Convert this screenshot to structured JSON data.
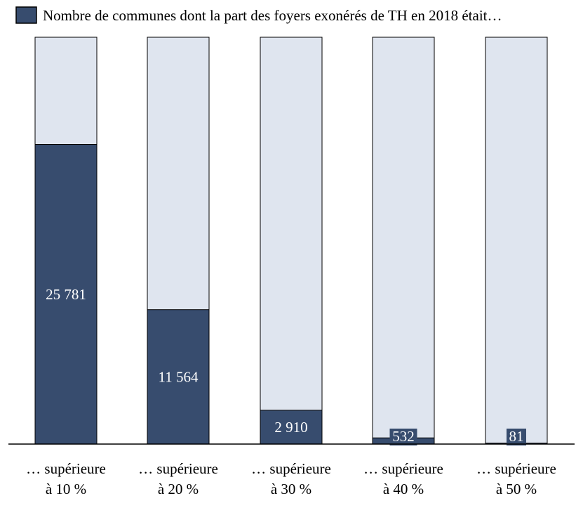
{
  "chart_data": {
    "type": "bar",
    "stacked": true,
    "total": 35000,
    "categories": [
      [
        "… supérieure",
        "à 10 %"
      ],
      [
        "… supérieure",
        "à 20 %"
      ],
      [
        "… supérieure",
        "à 30 %"
      ],
      [
        "… supérieure",
        "à 40 %"
      ],
      [
        "… supérieure",
        "à 50 %"
      ]
    ],
    "series": [
      {
        "name": "Nombre de communes dont la part des foyers exonérés de TH en 2018 était…",
        "values": [
          25781,
          11564,
          2910,
          532,
          81
        ]
      }
    ],
    "data_labels": [
      "25 781",
      "11 564",
      "2 910",
      "532",
      "81"
    ],
    "ylim": [
      0,
      35000
    ],
    "grid": false,
    "legend_position": "top-left",
    "colors": {
      "series": "#374c6e",
      "background_bar": "#dfe5ef",
      "outline": "#000000",
      "label_text": "#ffffff"
    }
  }
}
